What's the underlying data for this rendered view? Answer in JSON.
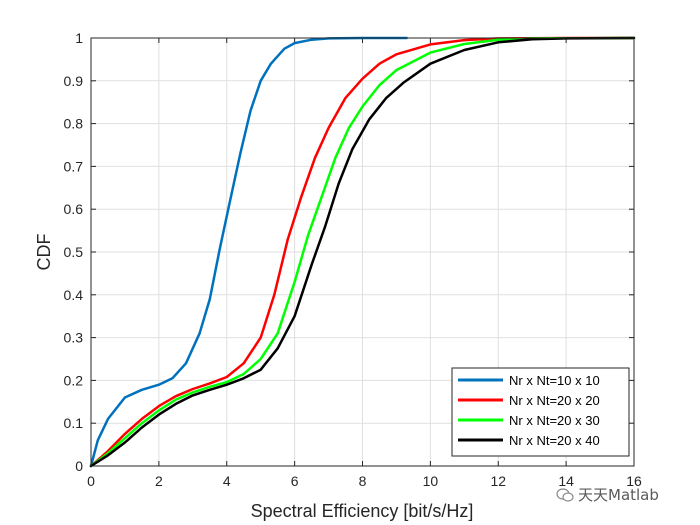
{
  "chart_data": {
    "type": "line",
    "title": "",
    "xlabel": "Spectral Efficiency [bit/s/Hz]",
    "ylabel": "CDF",
    "xlim": [
      0,
      16
    ],
    "ylim": [
      0,
      1
    ],
    "xticks": [
      0,
      2,
      4,
      6,
      8,
      10,
      12,
      14,
      16
    ],
    "yticks": [
      0,
      0.1,
      0.2,
      0.3,
      0.4,
      0.5,
      0.6,
      0.7,
      0.8,
      0.9,
      1
    ],
    "xtick_labels": [
      "0",
      "2",
      "4",
      "6",
      "8",
      "10",
      "12",
      "14",
      "16"
    ],
    "ytick_labels": [
      "0",
      "0.1",
      "0.2",
      "0.3",
      "0.4",
      "0.5",
      "0.6",
      "0.7",
      "0.8",
      "0.9",
      "1"
    ],
    "grid": true,
    "legend_position": "bottom-right",
    "series": [
      {
        "name": "Nr x Nt=10 x 10",
        "color": "#0072BD",
        "points": [
          [
            0,
            0
          ],
          [
            0.2,
            0.06
          ],
          [
            0.5,
            0.11
          ],
          [
            1,
            0.16
          ],
          [
            1.5,
            0.178
          ],
          [
            2,
            0.19
          ],
          [
            2.4,
            0.205
          ],
          [
            2.8,
            0.24
          ],
          [
            3.2,
            0.31
          ],
          [
            3.5,
            0.39
          ],
          [
            3.8,
            0.51
          ],
          [
            4.1,
            0.62
          ],
          [
            4.4,
            0.73
          ],
          [
            4.7,
            0.83
          ],
          [
            5,
            0.9
          ],
          [
            5.3,
            0.94
          ],
          [
            5.7,
            0.975
          ],
          [
            6,
            0.988
          ],
          [
            6.5,
            0.996
          ],
          [
            7,
            0.999
          ],
          [
            8,
            1
          ],
          [
            9.3,
            1
          ]
        ]
      },
      {
        "name": "Nr x Nt=20 x 20",
        "color": "#FF0000",
        "points": [
          [
            0,
            0
          ],
          [
            0.5,
            0.035
          ],
          [
            1,
            0.075
          ],
          [
            1.5,
            0.11
          ],
          [
            2,
            0.14
          ],
          [
            2.5,
            0.163
          ],
          [
            3,
            0.18
          ],
          [
            3.5,
            0.193
          ],
          [
            4,
            0.208
          ],
          [
            4.5,
            0.24
          ],
          [
            5,
            0.3
          ],
          [
            5.4,
            0.4
          ],
          [
            5.8,
            0.53
          ],
          [
            6.2,
            0.63
          ],
          [
            6.6,
            0.72
          ],
          [
            7,
            0.79
          ],
          [
            7.5,
            0.86
          ],
          [
            8,
            0.905
          ],
          [
            8.5,
            0.94
          ],
          [
            9,
            0.962
          ],
          [
            10,
            0.985
          ],
          [
            11,
            0.995
          ],
          [
            12,
            0.999
          ],
          [
            14,
            1
          ],
          [
            16,
            1
          ]
        ]
      },
      {
        "name": "Nr x Nt=20 x 30",
        "color": "#00FF00",
        "points": [
          [
            0,
            0
          ],
          [
            0.5,
            0.03
          ],
          [
            1,
            0.065
          ],
          [
            1.5,
            0.1
          ],
          [
            2,
            0.13
          ],
          [
            2.5,
            0.155
          ],
          [
            3,
            0.172
          ],
          [
            3.5,
            0.185
          ],
          [
            4,
            0.196
          ],
          [
            4.5,
            0.215
          ],
          [
            5,
            0.25
          ],
          [
            5.5,
            0.31
          ],
          [
            6,
            0.43
          ],
          [
            6.4,
            0.54
          ],
          [
            6.8,
            0.63
          ],
          [
            7.2,
            0.72
          ],
          [
            7.6,
            0.79
          ],
          [
            8,
            0.84
          ],
          [
            8.5,
            0.89
          ],
          [
            9,
            0.925
          ],
          [
            10,
            0.966
          ],
          [
            11,
            0.986
          ],
          [
            12,
            0.996
          ],
          [
            13,
            0.999
          ],
          [
            16,
            1
          ]
        ]
      },
      {
        "name": "Nr x Nt=20 x 40",
        "color": "#000000",
        "points": [
          [
            0,
            0
          ],
          [
            0.5,
            0.025
          ],
          [
            1,
            0.055
          ],
          [
            1.5,
            0.09
          ],
          [
            2,
            0.12
          ],
          [
            2.5,
            0.145
          ],
          [
            3,
            0.165
          ],
          [
            3.5,
            0.178
          ],
          [
            4,
            0.19
          ],
          [
            4.5,
            0.205
          ],
          [
            5,
            0.225
          ],
          [
            5.5,
            0.275
          ],
          [
            6,
            0.35
          ],
          [
            6.5,
            0.47
          ],
          [
            6.9,
            0.56
          ],
          [
            7.3,
            0.66
          ],
          [
            7.7,
            0.74
          ],
          [
            8.2,
            0.81
          ],
          [
            8.7,
            0.86
          ],
          [
            9.2,
            0.895
          ],
          [
            10,
            0.94
          ],
          [
            11,
            0.972
          ],
          [
            12,
            0.99
          ],
          [
            13,
            0.997
          ],
          [
            14,
            0.999
          ],
          [
            16,
            1
          ]
        ]
      }
    ]
  },
  "watermark": {
    "text": "天天Matlab"
  }
}
